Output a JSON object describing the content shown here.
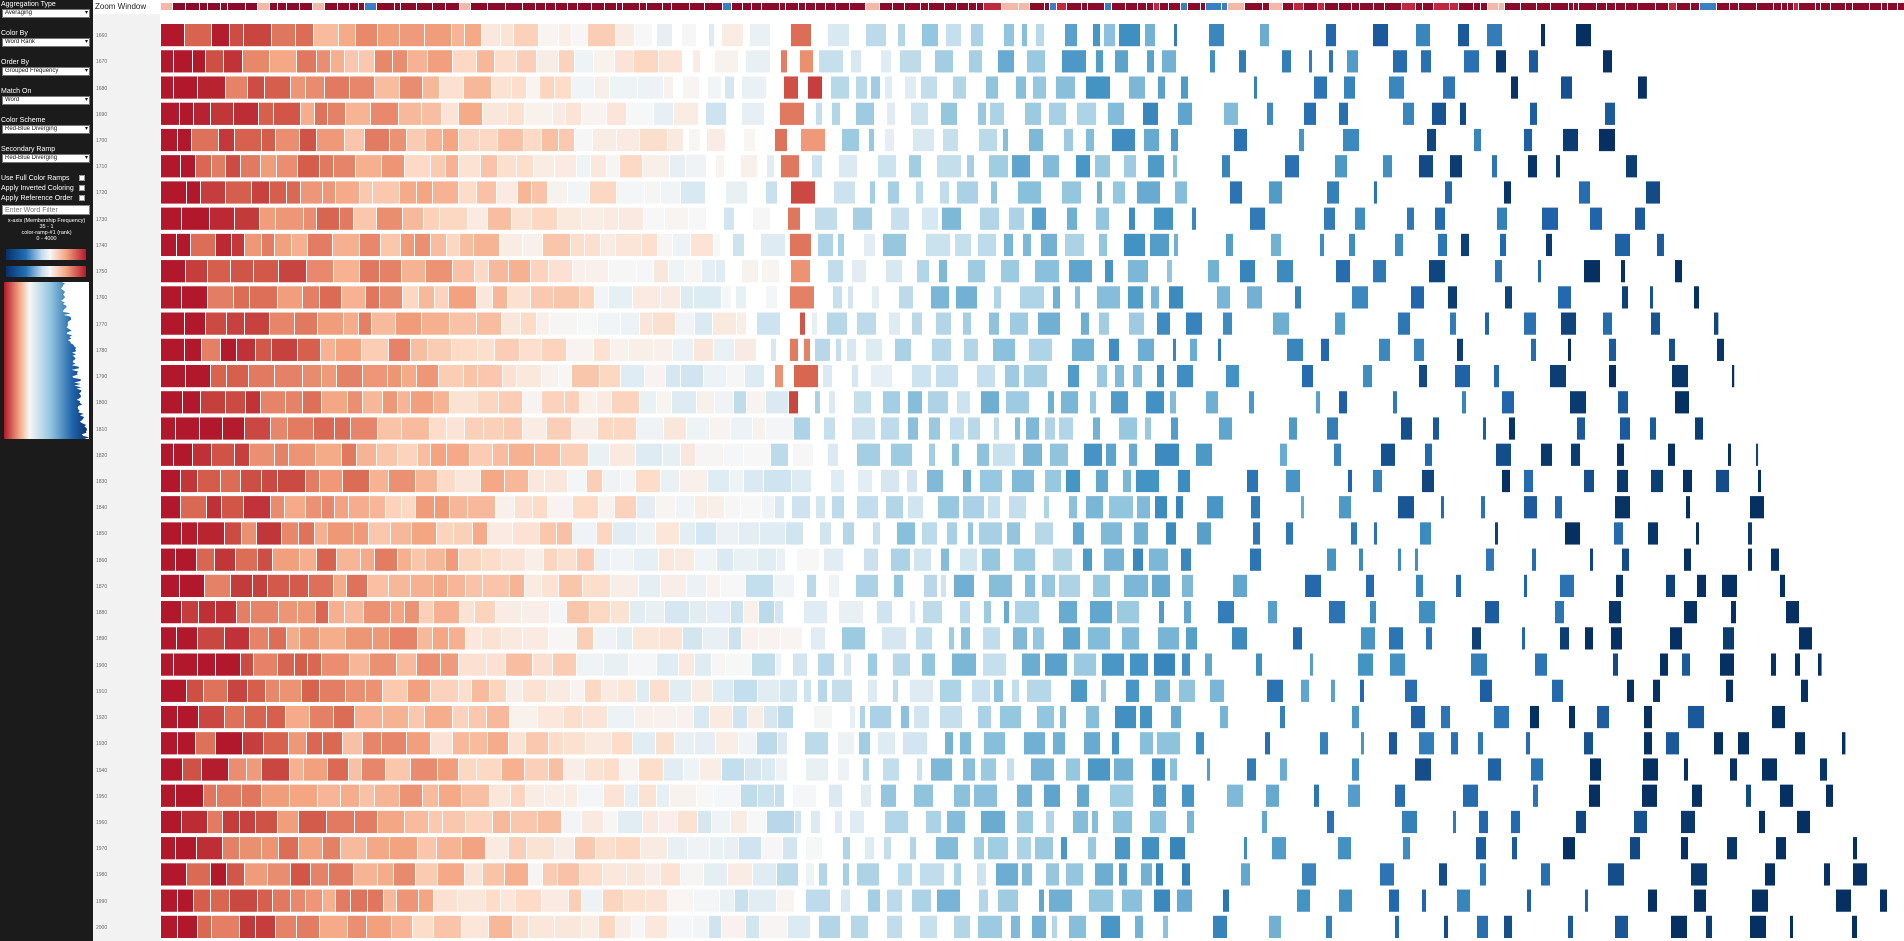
{
  "controls": {
    "aggregation_type": {
      "label": "Aggregation Type",
      "value": "Averaging"
    },
    "color_by": {
      "label": "Color By",
      "value": "Word Rank"
    },
    "order_by": {
      "label": "Order By",
      "value": "Grouped Frequency"
    },
    "match_on": {
      "label": "Match On",
      "value": "Word"
    },
    "color_scheme": {
      "label": "Color Scheme",
      "value": "Red-Blue Diverging"
    },
    "secondary_ramp": {
      "label": "Secondary Ramp",
      "value": "Red-Blue Diverging"
    },
    "checkboxes": [
      {
        "label": "Use Full Color Ramps",
        "checked": false
      },
      {
        "label": "Apply Inverted Coloring",
        "checked": false
      },
      {
        "label": "Apply Reference Order",
        "checked": false
      }
    ],
    "word_filter": {
      "placeholder": "Enter Word Filter"
    }
  },
  "legend": {
    "line1": "x-axis (Membership Frequency)",
    "line2": "35 - 1",
    "line3": "color-ramp-#1 (rank)",
    "line4": "0 - 4000"
  },
  "main": {
    "zoom_label": "Zoom Window",
    "years": [
      "1660",
      "1670",
      "1680",
      "1690",
      "1700",
      "1710",
      "1720",
      "1730",
      "1740",
      "1750",
      "1760",
      "1770",
      "1780",
      "1790",
      "1800",
      "1810",
      "1820",
      "1830",
      "1840",
      "1850",
      "1860",
      "1870",
      "1880",
      "1890",
      "1900",
      "1910",
      "1920",
      "1930",
      "1940",
      "1950",
      "1960",
      "1970",
      "1980",
      "1990",
      "2000"
    ]
  },
  "colors": {
    "sidebar_bg": "#1b1b1b",
    "ramp_red": "#b2182b",
    "ramp_blue": "#08306b",
    "zoom_bar": "#8b0a2a"
  }
}
